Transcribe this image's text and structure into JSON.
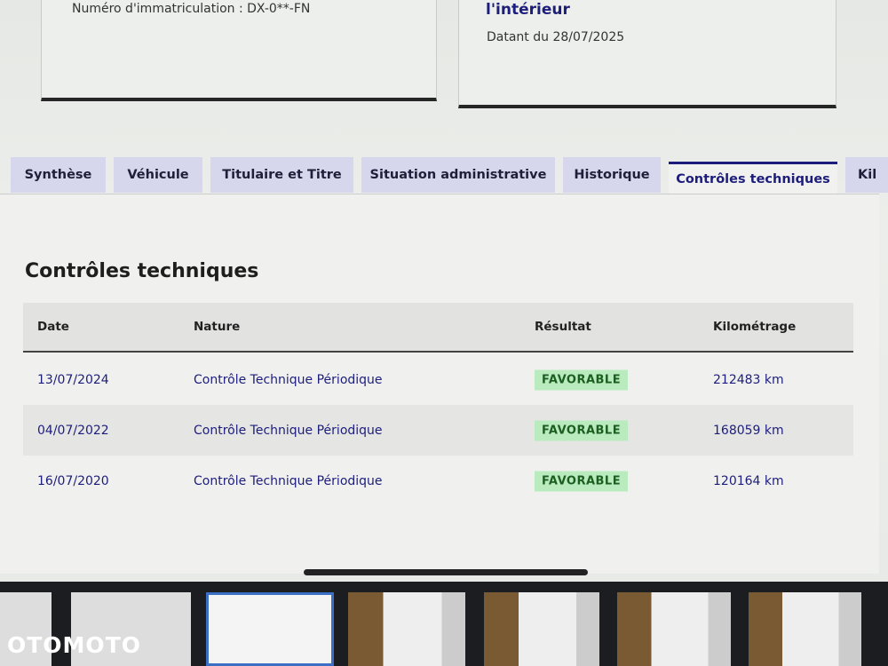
{
  "cards": {
    "left_text": "Numéro d'immatriculation : DX-0**-FN",
    "right_title": "l'intérieur",
    "right_date": "Datant du 28/07/2025"
  },
  "tabs": [
    "Synthèse",
    "Véhicule",
    "Titulaire et Titre",
    "Situation administrative",
    "Historique",
    "Contrôles techniques",
    "Kil"
  ],
  "active_tab": "Contrôles techniques",
  "section_title": "Contrôles techniques",
  "table": {
    "headers": [
      "Date",
      "Nature",
      "Résultat",
      "Kilométrage"
    ],
    "rows": [
      {
        "date": "13/07/2024",
        "nature": "Contrôle Technique Périodique",
        "result": "FAVORABLE",
        "km": "212483 km"
      },
      {
        "date": "04/07/2022",
        "nature": "Contrôle Technique Périodique",
        "result": "FAVORABLE",
        "km": "168059 km"
      },
      {
        "date": "16/07/2020",
        "nature": "Contrôle Technique Périodique",
        "result": "FAVORABLE",
        "km": "120164 km"
      }
    ]
  },
  "colors": {
    "accent": "#1d1d7c",
    "badge_bg": "#b9ebbf",
    "badge_text": "#1b5e20",
    "tab_bg": "#d6d6ec"
  },
  "watermark": "OTOMOTO"
}
